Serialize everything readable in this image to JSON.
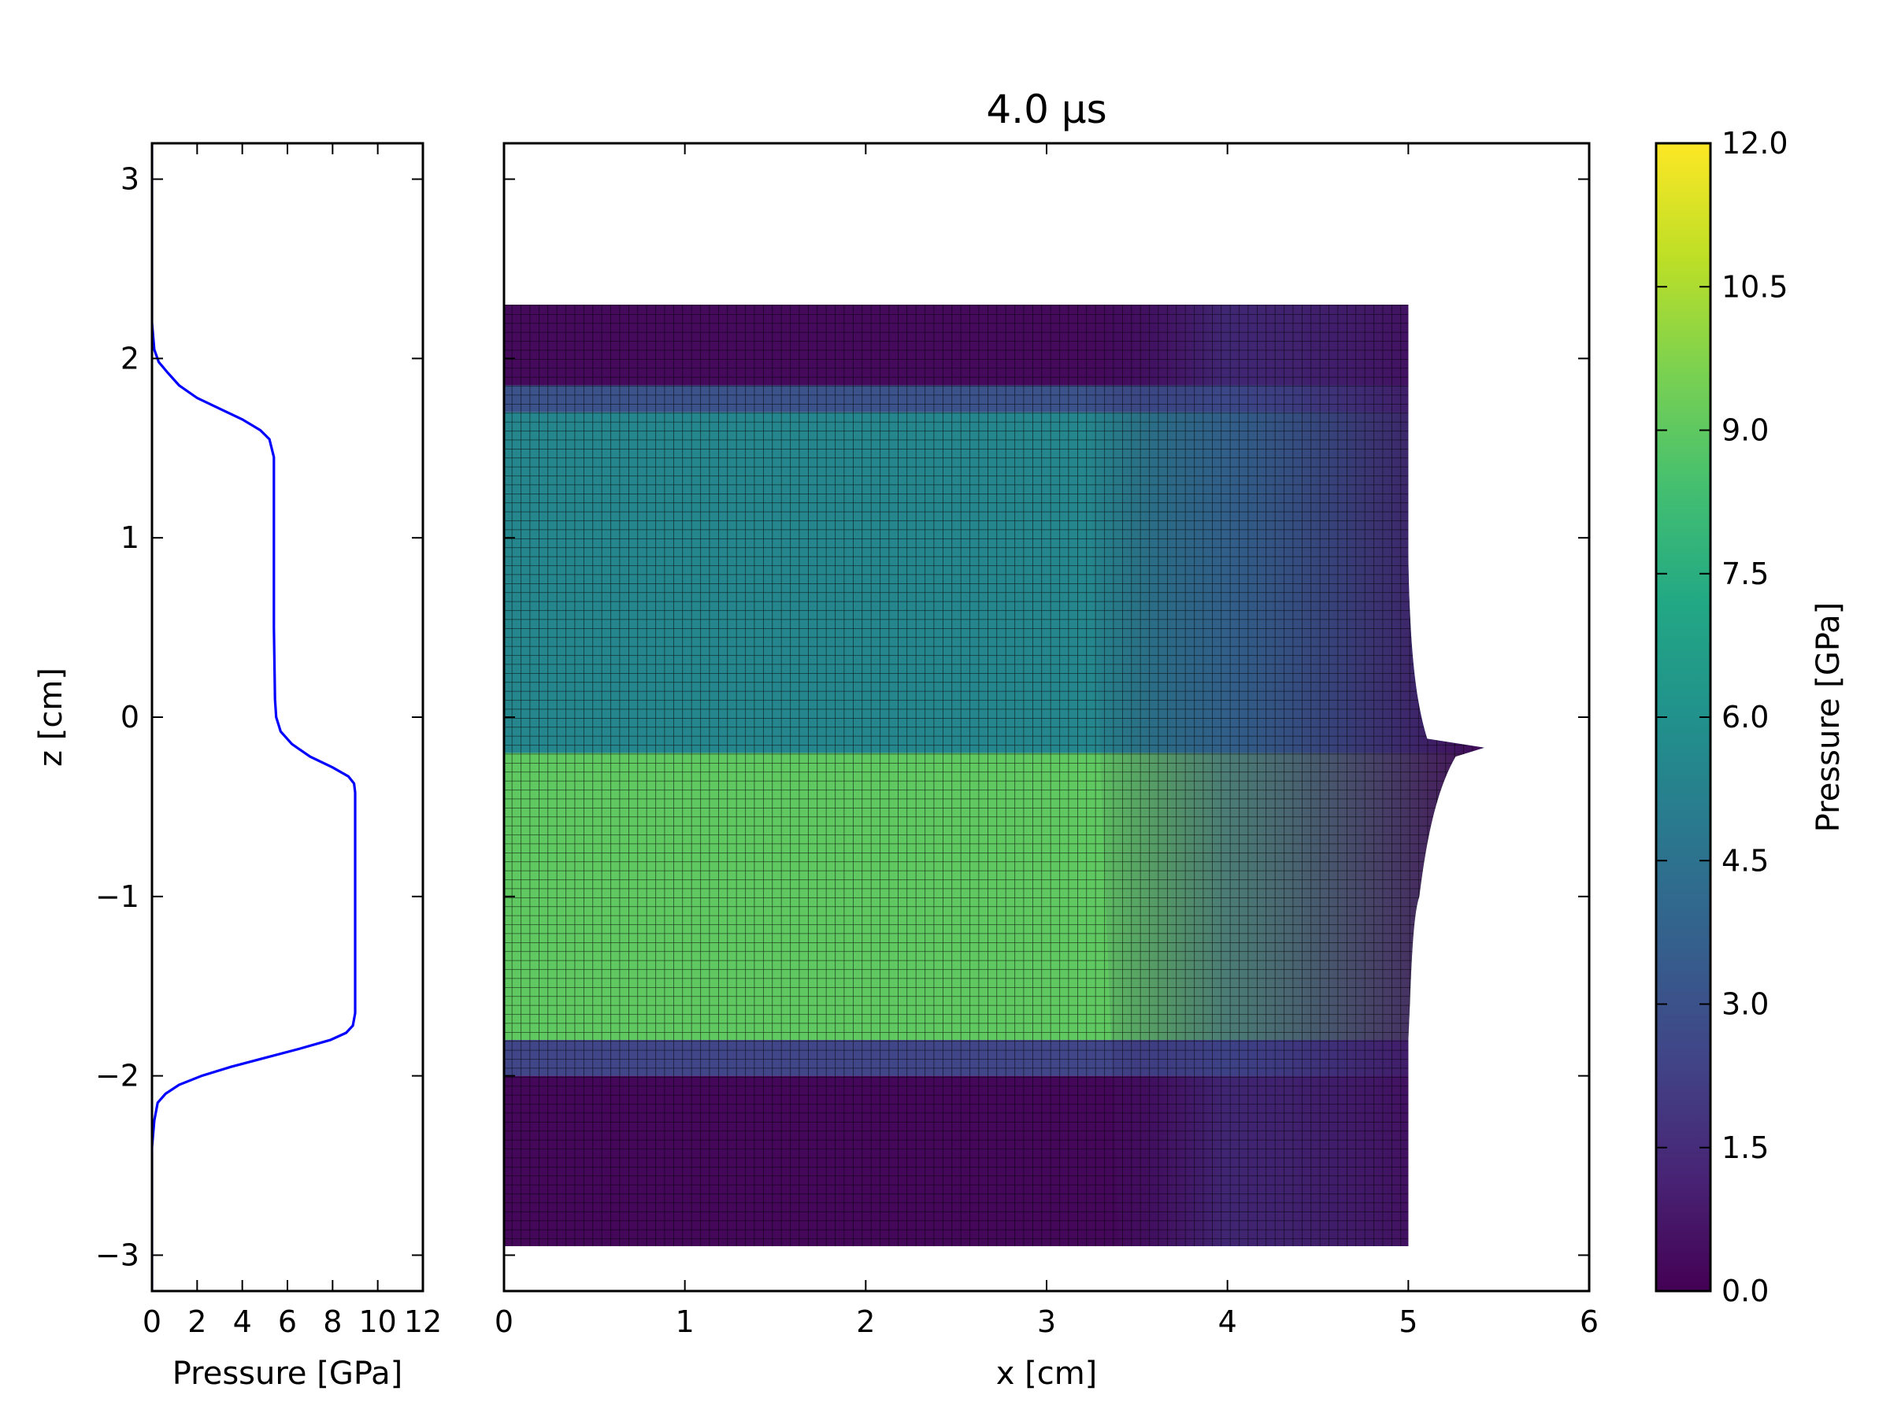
{
  "figure": {
    "title": "4.0 μs"
  },
  "chart_data": [
    {
      "type": "line",
      "panel": "pressure-profile",
      "xlabel": "Pressure [GPa]",
      "ylabel": "z [cm]",
      "xlim": [
        0,
        12
      ],
      "ylim": [
        -3.2,
        3.2
      ],
      "xticks": [
        "0",
        "2",
        "4",
        "6",
        "8",
        "10",
        "12"
      ],
      "yticks": [
        "−3",
        "−2",
        "−1",
        "0",
        "1",
        "2",
        "3"
      ],
      "line_color": "#0000ff",
      "series": [
        {
          "x": [
            0,
            0,
            0.1,
            0.3,
            0.7,
            1.2,
            2.0,
            3.0,
            4.0,
            4.8,
            5.2,
            5.4,
            5.4,
            5.4,
            5.45,
            5.5,
            5.7,
            6.2,
            7.0,
            8.0,
            8.7,
            8.95,
            9.0,
            9.0,
            9.0,
            8.9,
            8.6,
            7.9,
            6.5,
            5.0,
            3.5,
            2.2,
            1.2,
            0.6,
            0.25,
            0.1,
            0,
            0
          ],
          "y": [
            3.2,
            2.2,
            2.05,
            1.98,
            1.92,
            1.85,
            1.78,
            1.72,
            1.66,
            1.6,
            1.55,
            1.45,
            1.0,
            0.5,
            0.1,
            0.0,
            -0.08,
            -0.15,
            -0.22,
            -0.28,
            -0.33,
            -0.37,
            -0.42,
            -1.0,
            -1.65,
            -1.72,
            -1.76,
            -1.8,
            -1.85,
            -1.9,
            -1.95,
            -2.0,
            -2.05,
            -2.1,
            -2.15,
            -2.25,
            -2.4,
            -3.2
          ]
        }
      ]
    },
    {
      "type": "heatmap",
      "panel": "pressure-field",
      "title": "4.0 μs",
      "xlabel": "x [cm]",
      "ylabel": "",
      "xlim": [
        0,
        6
      ],
      "ylim": [
        -3.2,
        3.2
      ],
      "xticks": [
        "0",
        "1",
        "2",
        "3",
        "4",
        "5",
        "6"
      ],
      "region_extent": {
        "x": [
          0,
          5.0
        ],
        "z": [
          -2.95,
          2.3
        ]
      },
      "bands_z": [
        {
          "z_top": 2.3,
          "z_bottom": 1.85,
          "pressure": 0.3
        },
        {
          "z_top": 1.85,
          "z_bottom": 1.7,
          "pressure": 3.0
        },
        {
          "z_top": 1.7,
          "z_bottom": -0.2,
          "pressure": 5.5
        },
        {
          "z_top": -0.2,
          "z_bottom": -1.8,
          "pressure": 9.0
        },
        {
          "z_top": -1.8,
          "z_bottom": -2.0,
          "pressure": 2.5
        },
        {
          "z_top": -2.0,
          "z_bottom": -2.95,
          "pressure": 0.2
        }
      ],
      "jet_tip": {
        "x": 5.42,
        "z": -0.17
      }
    },
    {
      "type": "colorbar",
      "panel": "colorbar",
      "label": "Pressure [GPa]",
      "colormap": "viridis",
      "range": [
        0,
        12
      ],
      "ticks": [
        "0.0",
        "1.5",
        "3.0",
        "4.5",
        "6.0",
        "7.5",
        "9.0",
        "10.5",
        "12.0"
      ]
    }
  ]
}
